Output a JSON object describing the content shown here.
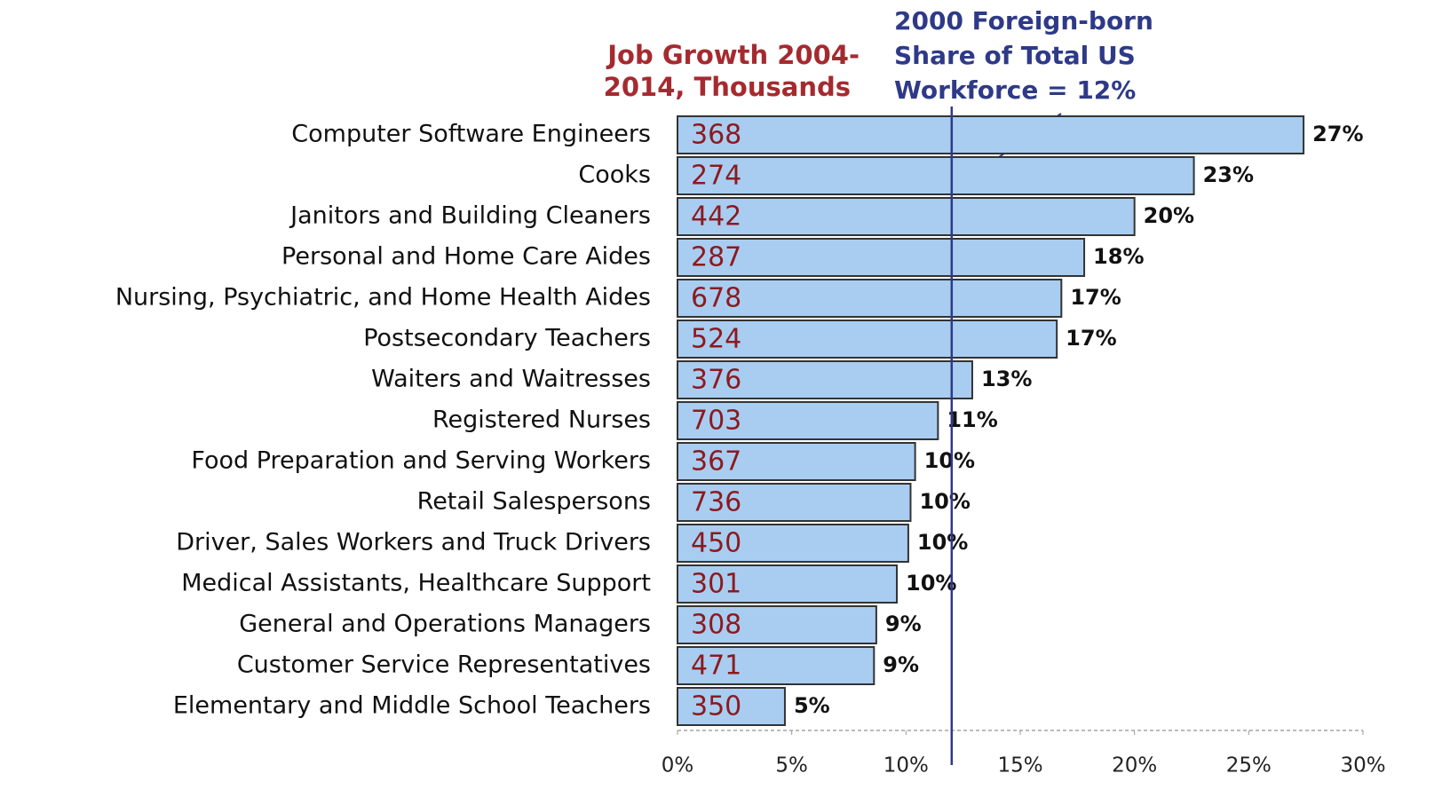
{
  "chart_data": {
    "type": "bar",
    "orientation": "horizontal",
    "title_lines": [
      "Job Growth 2004-",
      "2014, Thousands"
    ],
    "categories": [
      "Computer Software Engineers",
      "Cooks",
      "Janitors and Building Cleaners",
      "Personal and Home Care Aides",
      "Nursing, Psychiatric, and Home Health Aides",
      "Postsecondary Teachers",
      "Waiters and Waitresses",
      "Registered Nurses",
      "Food Preparation and Serving Workers",
      "Retail Salespersons",
      "Driver, Sales Workers and Truck Drivers",
      "Medical Assistants, Healthcare Support",
      "General and Operations Managers",
      "Customer Service Representatives",
      "Elementary and Middle School Teachers"
    ],
    "values": [
      27.4,
      22.6,
      20.0,
      17.8,
      16.8,
      16.6,
      12.9,
      11.4,
      10.4,
      10.2,
      10.1,
      9.6,
      8.7,
      8.6,
      4.7
    ],
    "value_labels": [
      "27%",
      "23%",
      "20%",
      "18%",
      "17%",
      "17%",
      "13%",
      "11%",
      "10%",
      "10%",
      "10%",
      "10%",
      "9%",
      "9%",
      "5%"
    ],
    "job_growth": [
      368,
      274,
      442,
      287,
      678,
      524,
      376,
      703,
      367,
      736,
      450,
      301,
      308,
      471,
      350
    ],
    "color": "#a9cdf0",
    "xlim": [
      0,
      30
    ],
    "xticks": [
      {
        "value": 0,
        "label": "0%"
      },
      {
        "value": 5,
        "label": "5%"
      },
      {
        "value": 10,
        "label": "10%"
      },
      {
        "value": 15,
        "label": "15%"
      },
      {
        "value": 20,
        "label": "20%"
      },
      {
        "value": 25,
        "label": "25%"
      },
      {
        "value": 30,
        "label": "30%"
      }
    ],
    "reference_line": {
      "value": 12,
      "label_lines": [
        "2000 Foreign-born",
        "Share of Total US",
        "Workforce = 12%"
      ]
    }
  }
}
